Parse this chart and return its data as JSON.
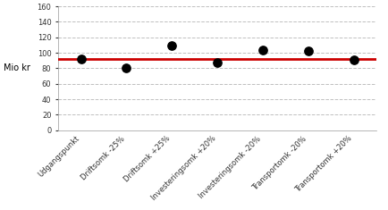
{
  "categories": [
    "Udgangspunkt",
    "Driftsomk -25%",
    "Driftsomk +25%",
    "Investeringsomk +20%",
    "Investeringsomk -20%",
    "Transportomk -20%",
    "Transportomk +20%"
  ],
  "values": [
    92,
    80,
    109,
    87,
    103,
    102,
    91
  ],
  "reference_line": 92,
  "reference_line_color": "#cc0000",
  "dot_color": "#000000",
  "dot_size": 45,
  "ylabel": "Mio kr",
  "ylim": [
    0,
    160
  ],
  "yticks": [
    0,
    20,
    40,
    60,
    80,
    100,
    120,
    140,
    160
  ],
  "grid_color": "#c0c0c0",
  "grid_style": "--",
  "background_color": "#ffffff",
  "tick_label_fontsize": 6,
  "ylabel_fontsize": 7,
  "ref_linewidth": 2.0
}
